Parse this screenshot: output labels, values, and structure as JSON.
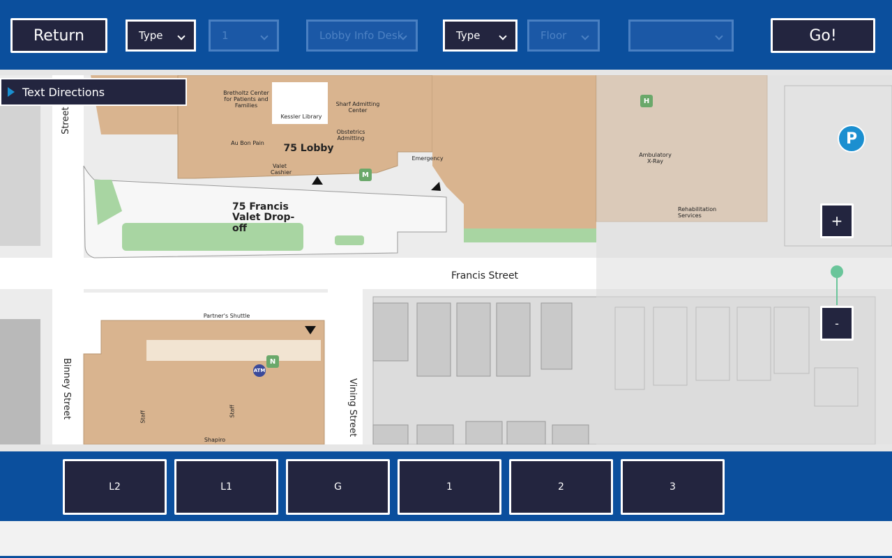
{
  "toolbar": {
    "return": "Return",
    "type_1": "Type",
    "number": "1",
    "location": "Lobby Info Desk",
    "type_2": "Type",
    "floor": "Floor",
    "go": "Go!"
  },
  "directions_panel": "Text Directions",
  "zoom": {
    "in": "+",
    "out": "-"
  },
  "floors": [
    "L2",
    "L1",
    "G",
    "1",
    "2",
    "3"
  ],
  "map": {
    "labels": [
      "Bretholtz Center for Patients and Families",
      "Sharf Admitting Center",
      "Kessler Library",
      "Obstetrics Admitting",
      "Au Bon Pain",
      "75 Lobby",
      "Valet Cashier",
      "Emergency",
      "75 Francis Valet Drop-off",
      "Francis Street",
      "Binney Street",
      "Vining Street",
      "Street",
      "Partner's Shuttle",
      "ATM",
      "Staff",
      "Staff",
      "Shapiro",
      "Ambulatory X-Ray",
      "Rehabilitation Services",
      "H",
      "M",
      "N",
      "P"
    ]
  }
}
